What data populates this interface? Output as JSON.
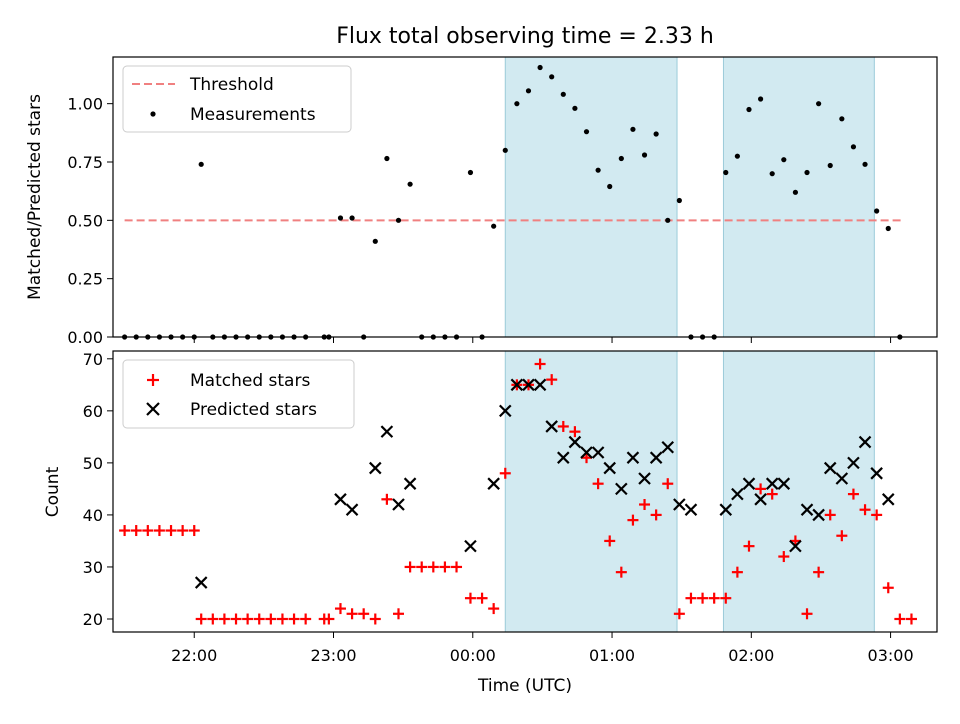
{
  "title": "Flux total observing time = 2.33 h",
  "shade_color": "#add8e6",
  "chart_data": [
    {
      "type": "scatter",
      "panel": "top",
      "ylabel": "Matched/Predicted stars",
      "ylim": [
        0,
        1.2
      ],
      "yticks": [
        0.0,
        0.25,
        0.5,
        0.75,
        1.0
      ],
      "ytick_labels": [
        "0.00",
        "0.25",
        "0.50",
        "0.75",
        "1.00"
      ],
      "xlim": [
        "21:25",
        "03:20"
      ],
      "shaded_intervals": [
        [
          "00:14",
          "01:28"
        ],
        [
          "01:48",
          "02:53"
        ]
      ],
      "legend_position": "top-left",
      "threshold": {
        "name": "Threshold",
        "value": 0.5,
        "x_range": [
          "21:30",
          "03:05"
        ],
        "color": "#f08080"
      },
      "series": [
        {
          "name": "Measurements",
          "color": "#000000",
          "points": [
            [
              "21:30",
              0
            ],
            [
              "21:35",
              0
            ],
            [
              "21:40",
              0
            ],
            [
              "21:45",
              0
            ],
            [
              "21:50",
              0
            ],
            [
              "21:55",
              0
            ],
            [
              "22:00",
              0
            ],
            [
              "22:03",
              0.74
            ],
            [
              "22:08",
              0
            ],
            [
              "22:13",
              0
            ],
            [
              "22:18",
              0
            ],
            [
              "22:23",
              0
            ],
            [
              "22:28",
              0
            ],
            [
              "22:33",
              0
            ],
            [
              "22:38",
              0
            ],
            [
              "22:43",
              0
            ],
            [
              "22:48",
              0
            ],
            [
              "22:56",
              0
            ],
            [
              "22:58",
              0
            ],
            [
              "23:03",
              0.51
            ],
            [
              "23:08",
              0.51
            ],
            [
              "23:13",
              0
            ],
            [
              "23:18",
              0.41
            ],
            [
              "23:23",
              0.765
            ],
            [
              "23:28",
              0.5
            ],
            [
              "23:33",
              0.655
            ],
            [
              "23:38",
              0
            ],
            [
              "23:43",
              0
            ],
            [
              "23:48",
              0
            ],
            [
              "23:53",
              0
            ],
            [
              "23:59",
              0.705
            ],
            [
              "00:04",
              0
            ],
            [
              "00:09",
              0.475
            ],
            [
              "00:14",
              0.8
            ],
            [
              "00:19",
              1.0
            ],
            [
              "00:24",
              1.055
            ],
            [
              "00:29",
              1.155
            ],
            [
              "00:34",
              1.115
            ],
            [
              "00:39",
              1.04
            ],
            [
              "00:44",
              0.98
            ],
            [
              "00:49",
              0.88
            ],
            [
              "00:54",
              0.715
            ],
            [
              "00:59",
              0.645
            ],
            [
              "01:04",
              0.765
            ],
            [
              "01:09",
              0.89
            ],
            [
              "01:14",
              0.78
            ],
            [
              "01:19",
              0.87
            ],
            [
              "01:24",
              0.5
            ],
            [
              "01:29",
              0.585
            ],
            [
              "01:34",
              0
            ],
            [
              "01:39",
              0
            ],
            [
              "01:44",
              0
            ],
            [
              "01:49",
              0.705
            ],
            [
              "01:54",
              0.775
            ],
            [
              "01:59",
              0.975
            ],
            [
              "02:04",
              1.02
            ],
            [
              "02:09",
              0.7
            ],
            [
              "02:14",
              0.76
            ],
            [
              "02:19",
              0.62
            ],
            [
              "02:24",
              0.705
            ],
            [
              "02:29",
              1.0
            ],
            [
              "02:34",
              0.735
            ],
            [
              "02:39",
              0.935
            ],
            [
              "02:44",
              0.815
            ],
            [
              "02:49",
              0.74
            ],
            [
              "02:54",
              0.54
            ],
            [
              "02:59",
              0.465
            ],
            [
              "03:04",
              0
            ]
          ]
        }
      ]
    },
    {
      "type": "scatter",
      "panel": "bottom",
      "xlabel": "Time (UTC)",
      "ylabel": "Count",
      "ylim": [
        17.5,
        71.5
      ],
      "yticks": [
        20,
        30,
        40,
        50,
        60,
        70
      ],
      "xticks": [
        "22:00",
        "23:00",
        "00:00",
        "01:00",
        "02:00",
        "03:00"
      ],
      "xlim": [
        "21:25",
        "03:20"
      ],
      "shaded_intervals": [
        [
          "00:14",
          "01:28"
        ],
        [
          "01:48",
          "02:53"
        ]
      ],
      "legend_position": "top-left",
      "series": [
        {
          "name": "Matched stars",
          "marker": "plus",
          "color": "#ff0000",
          "points": [
            [
              "21:30",
              37
            ],
            [
              "21:35",
              37
            ],
            [
              "21:40",
              37
            ],
            [
              "21:45",
              37
            ],
            [
              "21:50",
              37
            ],
            [
              "21:55",
              37
            ],
            [
              "22:00",
              37
            ],
            [
              "22:03",
              20
            ],
            [
              "22:08",
              20
            ],
            [
              "22:13",
              20
            ],
            [
              "22:18",
              20
            ],
            [
              "22:23",
              20
            ],
            [
              "22:28",
              20
            ],
            [
              "22:33",
              20
            ],
            [
              "22:38",
              20
            ],
            [
              "22:43",
              20
            ],
            [
              "22:48",
              20
            ],
            [
              "22:56",
              20
            ],
            [
              "22:58",
              20
            ],
            [
              "23:03",
              22
            ],
            [
              "23:08",
              21
            ],
            [
              "23:13",
              21
            ],
            [
              "23:18",
              20
            ],
            [
              "23:23",
              43
            ],
            [
              "23:28",
              21
            ],
            [
              "23:33",
              30
            ],
            [
              "23:38",
              30
            ],
            [
              "23:43",
              30
            ],
            [
              "23:48",
              30
            ],
            [
              "23:53",
              30
            ],
            [
              "23:59",
              24
            ],
            [
              "00:04",
              24
            ],
            [
              "00:09",
              22
            ],
            [
              "00:14",
              48
            ],
            [
              "00:19",
              65
            ],
            [
              "00:24",
              65
            ],
            [
              "00:29",
              69
            ],
            [
              "00:34",
              66
            ],
            [
              "00:39",
              57
            ],
            [
              "00:44",
              56
            ],
            [
              "00:49",
              51
            ],
            [
              "00:54",
              46
            ],
            [
              "00:59",
              35
            ],
            [
              "01:04",
              29
            ],
            [
              "01:09",
              39
            ],
            [
              "01:14",
              42
            ],
            [
              "01:19",
              40
            ],
            [
              "01:24",
              46
            ],
            [
              "01:29",
              21
            ],
            [
              "01:34",
              24
            ],
            [
              "01:39",
              24
            ],
            [
              "01:44",
              24
            ],
            [
              "01:49",
              24
            ],
            [
              "01:54",
              29
            ],
            [
              "01:59",
              34
            ],
            [
              "02:04",
              45
            ],
            [
              "02:09",
              44
            ],
            [
              "02:14",
              32
            ],
            [
              "02:19",
              35
            ],
            [
              "02:24",
              21
            ],
            [
              "02:29",
              29
            ],
            [
              "02:34",
              40
            ],
            [
              "02:39",
              36
            ],
            [
              "02:44",
              44
            ],
            [
              "02:49",
              41
            ],
            [
              "02:54",
              40
            ],
            [
              "02:59",
              26
            ],
            [
              "03:04",
              20
            ],
            [
              "03:09",
              20
            ]
          ]
        },
        {
          "name": "Predicted stars",
          "marker": "x",
          "color": "#000000",
          "points": [
            [
              "22:03",
              27
            ],
            [
              "23:03",
              43
            ],
            [
              "23:08",
              41
            ],
            [
              "23:18",
              49
            ],
            [
              "23:23",
              56
            ],
            [
              "23:28",
              42
            ],
            [
              "23:33",
              46
            ],
            [
              "23:59",
              34
            ],
            [
              "00:09",
              46
            ],
            [
              "00:14",
              60
            ],
            [
              "00:19",
              65
            ],
            [
              "00:24",
              65
            ],
            [
              "00:29",
              65
            ],
            [
              "00:34",
              57
            ],
            [
              "00:39",
              51
            ],
            [
              "00:44",
              54
            ],
            [
              "00:49",
              52
            ],
            [
              "00:54",
              52
            ],
            [
              "00:59",
              49
            ],
            [
              "01:04",
              45
            ],
            [
              "01:09",
              51
            ],
            [
              "01:14",
              47
            ],
            [
              "01:19",
              51
            ],
            [
              "01:24",
              53
            ],
            [
              "01:29",
              42
            ],
            [
              "01:34",
              41
            ],
            [
              "01:49",
              41
            ],
            [
              "01:54",
              44
            ],
            [
              "01:59",
              46
            ],
            [
              "02:04",
              43
            ],
            [
              "02:09",
              46
            ],
            [
              "02:14",
              46
            ],
            [
              "02:19",
              34
            ],
            [
              "02:24",
              41
            ],
            [
              "02:29",
              40
            ],
            [
              "02:34",
              49
            ],
            [
              "02:39",
              47
            ],
            [
              "02:44",
              50
            ],
            [
              "02:49",
              54
            ],
            [
              "02:54",
              48
            ],
            [
              "02:59",
              43
            ]
          ]
        }
      ]
    }
  ]
}
